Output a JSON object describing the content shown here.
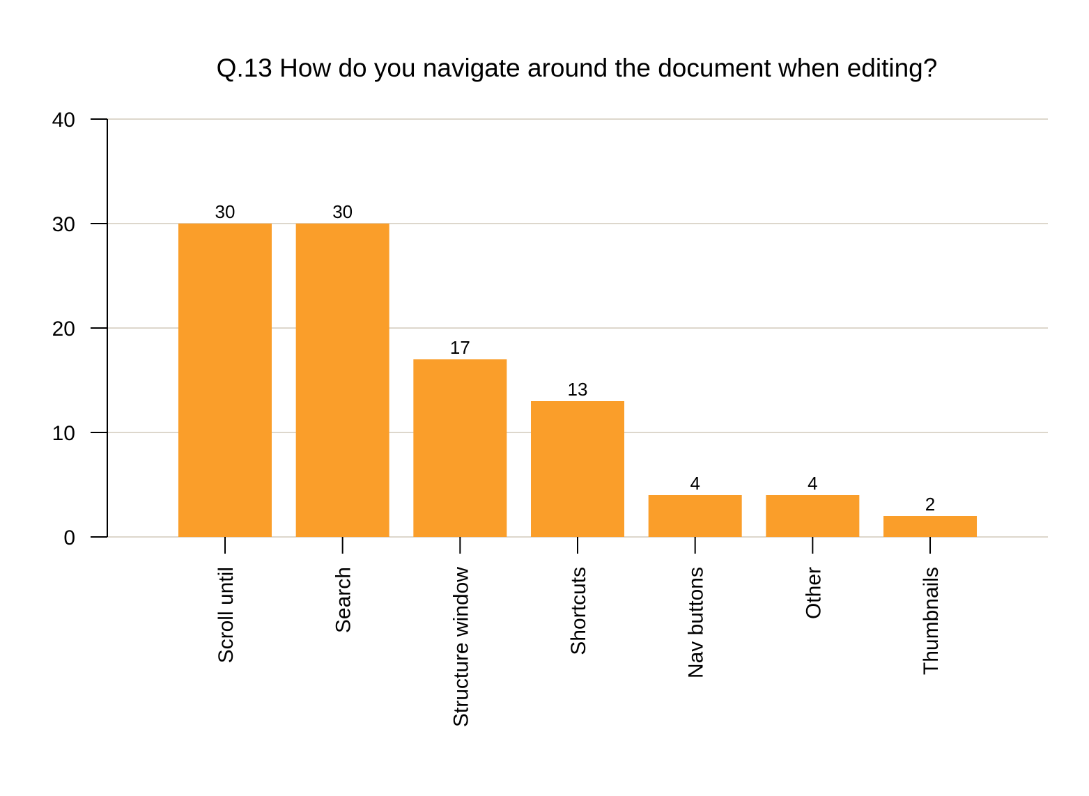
{
  "chart_data": {
    "type": "bar",
    "title": "Q.13 How do you navigate around the document when editing?",
    "categories": [
      "Scroll until",
      "Search",
      "Structure window",
      "Shortcuts",
      "Nav buttons",
      "Other",
      "Thumbnails"
    ],
    "values": [
      30,
      30,
      17,
      13,
      4,
      4,
      2
    ],
    "xlabel": "",
    "ylabel": "",
    "ylim": [
      0,
      40
    ],
    "yticks": [
      0,
      10,
      20,
      30,
      40
    ],
    "grid": true,
    "data_labels": true,
    "colors": {
      "bar": "#FA9E2A",
      "grid": "#DDD7CC",
      "axis": "#000000"
    }
  }
}
